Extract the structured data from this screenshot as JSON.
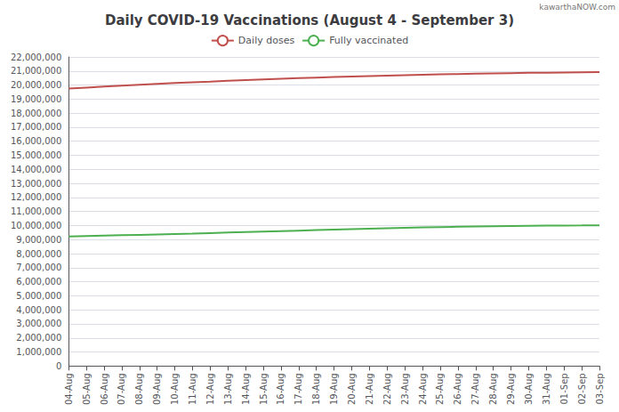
{
  "chart_data": {
    "type": "line",
    "title": "Daily COVID-19 Vaccinations (August 4 - September 3)",
    "annotations": [
      "kawarthaNOW.com"
    ],
    "categories": [
      "04-Aug",
      "05-Aug",
      "06-Aug",
      "07-Aug",
      "08-Aug",
      "09-Aug",
      "10-Aug",
      "11-Aug",
      "12-Aug",
      "13-Aug",
      "14-Aug",
      "15-Aug",
      "16-Aug",
      "17-Aug",
      "18-Aug",
      "19-Aug",
      "20-Aug",
      "21-Aug",
      "22-Aug",
      "23-Aug",
      "24-Aug",
      "25-Aug",
      "26-Aug",
      "27-Aug",
      "28-Aug",
      "29-Aug",
      "30-Aug",
      "31-Aug",
      "01-Sep",
      "02-Sep",
      "03-Sep"
    ],
    "series": [
      {
        "name": "Daily doses",
        "color": "#C0504D",
        "values": [
          19750000,
          19820000,
          19890000,
          19960000,
          20020000,
          20080000,
          20140000,
          20200000,
          20250000,
          20305000,
          20355000,
          20400000,
          20445000,
          20490000,
          20530000,
          20570000,
          20605000,
          20640000,
          20675000,
          20705000,
          20735000,
          20760000,
          20785000,
          20808000,
          20830000,
          20850000,
          20868000,
          20882000,
          20895000,
          20908000,
          20920000
        ]
      },
      {
        "name": "Fully vaccinated",
        "color": "#4CAF50",
        "values": [
          9220000,
          9250000,
          9280000,
          9310000,
          9340000,
          9370000,
          9400000,
          9430000,
          9465000,
          9500000,
          9535000,
          9570000,
          9605000,
          9640000,
          9675000,
          9710000,
          9745000,
          9780000,
          9810000,
          9840000,
          9868000,
          9893000,
          9915000,
          9935000,
          9953000,
          9968000,
          9981000,
          9991000,
          10000000,
          10008000,
          10020000
        ]
      }
    ],
    "ylim": [
      0,
      22000000
    ],
    "yticks": [
      0,
      {
        "value": 1000000,
        "label": "1,000,000"
      },
      {
        "value": 2000000,
        "label": "2,000,000"
      },
      {
        "value": 3000000,
        "label": "3,000,000"
      },
      {
        "value": 4000000,
        "label": "4,000,000"
      },
      {
        "value": 5000000,
        "label": "5,000,000"
      },
      {
        "value": 6000000,
        "label": "6,000,000"
      },
      {
        "value": 7000000,
        "label": "7,000,000"
      },
      {
        "value": 8000000,
        "label": "8,000,000"
      },
      {
        "value": 9000000,
        "label": "9,000,000"
      },
      {
        "value": 10000000,
        "label": "10,000,000"
      },
      {
        "value": 11000000,
        "label": "11,000,000"
      },
      {
        "value": 12000000,
        "label": "12,000,000"
      },
      {
        "value": 13000000,
        "label": "13,000,000"
      },
      {
        "value": 14000000,
        "label": "14,000,000"
      },
      {
        "value": 15000000,
        "label": "15,000,000"
      },
      {
        "value": 16000000,
        "label": "16,000,000"
      },
      {
        "value": 17000000,
        "label": "17,000,000"
      },
      {
        "value": 18000000,
        "label": "18,000,000"
      },
      {
        "value": 19000000,
        "label": "19,000,000"
      },
      {
        "value": 20000000,
        "label": "20,000,000"
      },
      {
        "value": 21000000,
        "label": "21,000,000"
      },
      {
        "value": 22000000,
        "label": "22,000,000"
      }
    ],
    "grid": true,
    "legend": "top"
  }
}
